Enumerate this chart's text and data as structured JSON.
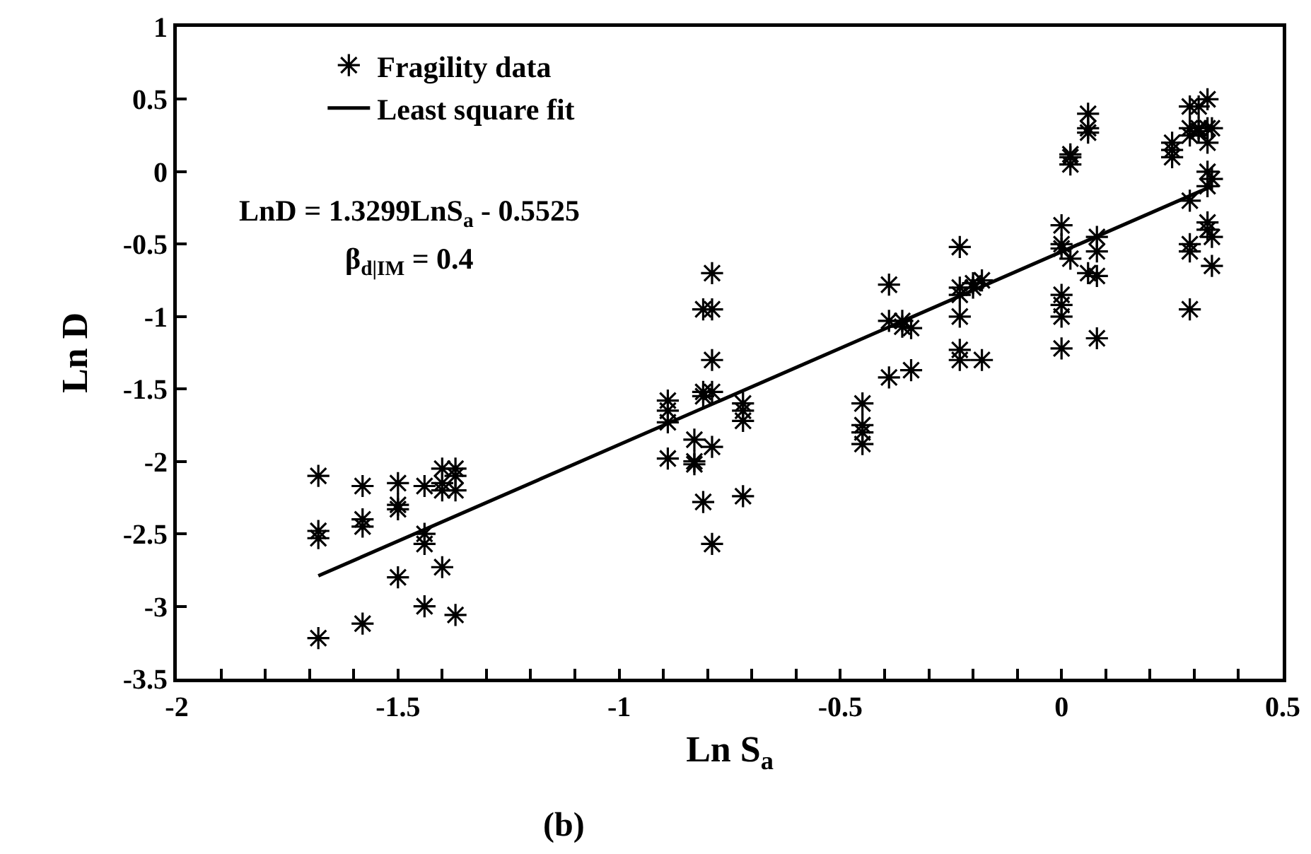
{
  "chart_data": {
    "type": "scatter",
    "xlabel": "Ln S$_{a}$",
    "ylabel": "Ln D",
    "annotations": [
      "LnD = 1.3299LnS$_{a}$ - 0.5525",
      "β$_{d|IM}$ = 0.4",
      "(b)"
    ],
    "xlim": [
      -2,
      0.5
    ],
    "ylim": [
      -3.5,
      1
    ],
    "xticks": [
      -2,
      {
        "value": -1.9,
        "label": null
      },
      {
        "value": -1.8,
        "label": null
      },
      {
        "value": -1.7,
        "label": null
      },
      {
        "value": -1.6,
        "label": null
      },
      -1.5,
      {
        "value": -1.4,
        "label": null
      },
      {
        "value": -1.3,
        "label": null
      },
      {
        "value": -1.2,
        "label": null
      },
      {
        "value": -1.1,
        "label": null
      },
      -1,
      {
        "value": -0.9,
        "label": null
      },
      {
        "value": -0.8,
        "label": null
      },
      {
        "value": -0.7,
        "label": null
      },
      {
        "value": -0.6,
        "label": null
      },
      -0.5,
      {
        "value": -0.4,
        "label": null
      },
      {
        "value": -0.3,
        "label": null
      },
      {
        "value": -0.2,
        "label": null
      },
      {
        "value": -0.1,
        "label": null
      },
      0,
      {
        "value": 0.1,
        "label": null
      },
      {
        "value": 0.2,
        "label": null
      },
      {
        "value": 0.3,
        "label": null
      },
      {
        "value": 0.4,
        "label": null
      },
      0.5
    ],
    "yticks": [
      -3.5,
      -3,
      -2.5,
      -2,
      -1.5,
      -1,
      -0.5,
      0,
      0.5,
      1
    ],
    "grid": false,
    "legend": "top left",
    "series": [
      {
        "name": "Fragility data",
        "type": "scatter",
        "marker": "cross",
        "color": "#000000",
        "x": [
          -1.68,
          -1.68,
          -1.68,
          -1.68,
          -1.58,
          -1.58,
          -1.58,
          -1.58,
          -1.5,
          -1.5,
          -1.5,
          -1.5,
          -1.44,
          -1.44,
          -1.44,
          -1.44,
          -1.4,
          -1.4,
          -1.4,
          -1.4,
          -1.37,
          -1.37,
          -1.37,
          -1.37,
          -0.89,
          -0.89,
          -0.89,
          -0.89,
          -0.83,
          -0.83,
          -0.83,
          -0.81,
          -0.81,
          -0.81,
          -0.81,
          -0.79,
          -0.79,
          -0.79,
          -0.79,
          -0.79,
          -0.79,
          -0.72,
          -0.72,
          -0.72,
          -0.72,
          -0.45,
          -0.45,
          -0.45,
          -0.45,
          -0.39,
          -0.39,
          -0.39,
          -0.36,
          -0.36,
          -0.34,
          -0.34,
          -0.23,
          -0.23,
          -0.23,
          -0.23,
          -0.23,
          -0.23,
          -0.2,
          -0.2,
          -0.18,
          -0.18,
          0,
          0,
          0,
          0,
          0,
          0,
          0,
          0.02,
          0.02,
          0.02,
          0.02,
          0.06,
          0.06,
          0.06,
          0.06,
          0.08,
          0.08,
          0.08,
          0.08,
          0.25,
          0.25,
          0.25,
          0.29,
          0.29,
          0.29,
          0.29,
          0.29,
          0.29,
          0.29,
          0.31,
          0.31,
          0.31,
          0.33,
          0.33,
          0.33,
          0.33,
          0.33,
          0.33,
          0.33,
          0.34,
          0.34,
          0.34,
          0.34
        ],
        "values": [
          -2.1,
          -2.48,
          -2.53,
          -3.22,
          -2.17,
          -2.4,
          -2.45,
          -3.12,
          -2.15,
          -2.3,
          -2.33,
          -2.8,
          -2.17,
          -2.5,
          -2.57,
          -3.0,
          -2.05,
          -2.2,
          -2.15,
          -2.73,
          -2.05,
          -2.1,
          -2.2,
          -3.06,
          -1.58,
          -1.65,
          -1.73,
          -1.98,
          -1.85,
          -2.0,
          -2.02,
          -1.52,
          -1.55,
          -0.95,
          -2.28,
          -0.7,
          -0.95,
          -1.3,
          -1.52,
          -1.9,
          -2.57,
          -1.6,
          -1.65,
          -1.72,
          -2.24,
          -1.6,
          -1.75,
          -1.8,
          -1.88,
          -0.78,
          -1.03,
          -1.42,
          -1.03,
          -1.07,
          -1.08,
          -1.37,
          -0.52,
          -0.8,
          -0.85,
          -1.0,
          -1.23,
          -1.3,
          -0.77,
          -0.8,
          -1.3,
          -0.75,
          -0.37,
          -0.5,
          -0.53,
          -0.85,
          -0.92,
          -1.0,
          -1.22,
          0.05,
          0.1,
          0.12,
          -0.6,
          0.4,
          0.3,
          0.27,
          -0.7,
          -0.45,
          -0.55,
          -0.72,
          -1.15,
          0.1,
          0.15,
          0.2,
          0.45,
          0.3,
          0.25,
          -0.2,
          -0.5,
          -0.55,
          -0.95,
          0.45,
          0.3,
          0.28,
          0.5,
          0.3,
          0.2,
          0.0,
          -0.1,
          -0.4,
          -0.35,
          0.3,
          -0.05,
          -0.45,
          -0.65
        ]
      },
      {
        "name": "Least square fit",
        "type": "line",
        "marker": "none",
        "line_style": "solid",
        "color": "#000000",
        "x": [
          -1.68,
          0.34
        ],
        "values": [
          -2.79,
          -0.1
        ]
      }
    ]
  }
}
